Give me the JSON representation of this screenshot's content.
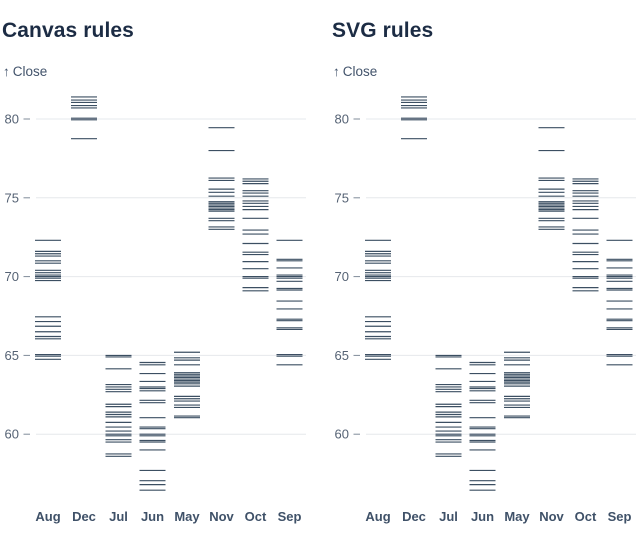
{
  "colors": {
    "title": "#1c2c44",
    "axis_label": "#42536b",
    "mark": "#2e4257",
    "grid": "#e6e8ec",
    "tick_dash": "#7f8b99",
    "y_tick_text": "#556274",
    "x_tick_text": "#3f5168",
    "background": "#ffffff"
  },
  "chart_data": [
    {
      "type": "barcode",
      "title": "Canvas rules",
      "y_axis": {
        "arrow": "↑",
        "label": "Close"
      },
      "categories": [
        "Aug",
        "Dec",
        "Jul",
        "Jun",
        "May",
        "Nov",
        "Oct",
        "Sep"
      ],
      "yticks": [
        80,
        75,
        70,
        65,
        60
      ],
      "ylim": [
        56,
        82
      ],
      "grid": true,
      "legend": "none",
      "series": {
        "Aug": [
          72.3,
          71.6,
          71.45,
          71.3,
          71.0,
          70.85,
          70.4,
          70.25,
          70.1,
          70.0,
          69.9,
          69.75,
          67.45,
          67.15,
          66.85,
          66.5,
          66.2,
          66.05,
          65.05,
          64.95,
          64.75
        ],
        "Dec": [
          81.4,
          81.2,
          81.05,
          80.85,
          80.7,
          80.05,
          79.95,
          78.75
        ],
        "Jul": [
          65.0,
          64.9,
          64.15,
          63.15,
          63.0,
          62.85,
          62.7,
          61.9,
          61.75,
          61.4,
          61.25,
          61.1,
          60.75,
          60.45,
          60.2,
          60.0,
          59.9,
          59.65,
          59.5,
          58.75,
          58.6
        ],
        "Jun": [
          64.55,
          64.4,
          63.85,
          63.35,
          63.0,
          62.9,
          62.75,
          62.15,
          62.0,
          61.05,
          60.45,
          60.35,
          60.0,
          59.9,
          59.6,
          59.5,
          59.0,
          57.7,
          57.05,
          56.8,
          56.45
        ],
        "May": [
          65.2,
          64.85,
          64.7,
          64.4,
          63.9,
          63.8,
          63.7,
          63.6,
          63.5,
          63.4,
          63.3,
          63.2,
          63.05,
          62.4,
          62.25,
          62.1,
          61.85,
          61.7,
          61.15,
          61.05
        ],
        "Nov": [
          79.45,
          78.0,
          76.25,
          76.1,
          75.55,
          75.35,
          75.1,
          74.75,
          74.65,
          74.55,
          74.45,
          74.35,
          74.25,
          74.15,
          73.7,
          73.55,
          73.15,
          73.0
        ],
        "Oct": [
          76.2,
          76.05,
          75.9,
          75.45,
          75.3,
          75.1,
          74.8,
          74.65,
          74.45,
          74.25,
          73.7,
          72.95,
          72.7,
          72.1,
          71.55,
          71.4,
          70.95,
          70.5,
          70.0,
          69.9,
          69.3,
          69.1
        ],
        "Sep": [
          72.3,
          71.1,
          71.0,
          70.55,
          70.1,
          70.0,
          69.9,
          69.7,
          69.25,
          69.15,
          68.45,
          67.95,
          67.3,
          67.2,
          66.75,
          66.65,
          65.05,
          64.95,
          64.4
        ]
      }
    },
    {
      "type": "barcode",
      "title": "SVG rules",
      "y_axis": {
        "arrow": "↑",
        "label": "Close"
      },
      "categories": [
        "Aug",
        "Dec",
        "Jul",
        "Jun",
        "May",
        "Nov",
        "Oct",
        "Sep"
      ],
      "yticks": [
        80,
        75,
        70,
        65,
        60
      ],
      "ylim": [
        56,
        82
      ],
      "grid": true,
      "legend": "none",
      "series": {
        "Aug": [
          72.3,
          71.6,
          71.45,
          71.3,
          71.0,
          70.85,
          70.4,
          70.25,
          70.1,
          70.0,
          69.9,
          69.75,
          67.45,
          67.15,
          66.85,
          66.5,
          66.2,
          66.05,
          65.05,
          64.95,
          64.75
        ],
        "Dec": [
          81.4,
          81.2,
          81.05,
          80.85,
          80.7,
          80.05,
          79.95,
          78.75
        ],
        "Jul": [
          65.0,
          64.9,
          64.15,
          63.15,
          63.0,
          62.85,
          62.7,
          61.9,
          61.75,
          61.4,
          61.25,
          61.1,
          60.75,
          60.45,
          60.2,
          60.0,
          59.9,
          59.65,
          59.5,
          58.75,
          58.6
        ],
        "Jun": [
          64.55,
          64.4,
          63.85,
          63.35,
          63.0,
          62.9,
          62.75,
          62.15,
          62.0,
          61.05,
          60.45,
          60.35,
          60.0,
          59.9,
          59.6,
          59.5,
          59.0,
          57.7,
          57.05,
          56.8,
          56.45
        ],
        "May": [
          65.2,
          64.85,
          64.7,
          64.4,
          63.9,
          63.8,
          63.7,
          63.6,
          63.5,
          63.4,
          63.3,
          63.2,
          63.05,
          62.4,
          62.25,
          62.1,
          61.85,
          61.7,
          61.15,
          61.05
        ],
        "Nov": [
          79.45,
          78.0,
          76.25,
          76.1,
          75.55,
          75.35,
          75.1,
          74.75,
          74.65,
          74.55,
          74.45,
          74.35,
          74.25,
          74.15,
          73.7,
          73.55,
          73.15,
          73.0
        ],
        "Oct": [
          76.2,
          76.05,
          75.9,
          75.45,
          75.3,
          75.1,
          74.8,
          74.65,
          74.45,
          74.25,
          73.7,
          72.95,
          72.7,
          72.1,
          71.55,
          71.4,
          70.95,
          70.5,
          70.0,
          69.9,
          69.3,
          69.1
        ],
        "Sep": [
          72.3,
          71.1,
          71.0,
          70.55,
          70.1,
          70.0,
          69.9,
          69.7,
          69.25,
          69.15,
          68.45,
          67.95,
          67.3,
          67.2,
          66.75,
          66.65,
          65.05,
          64.95,
          64.4
        ]
      }
    }
  ]
}
